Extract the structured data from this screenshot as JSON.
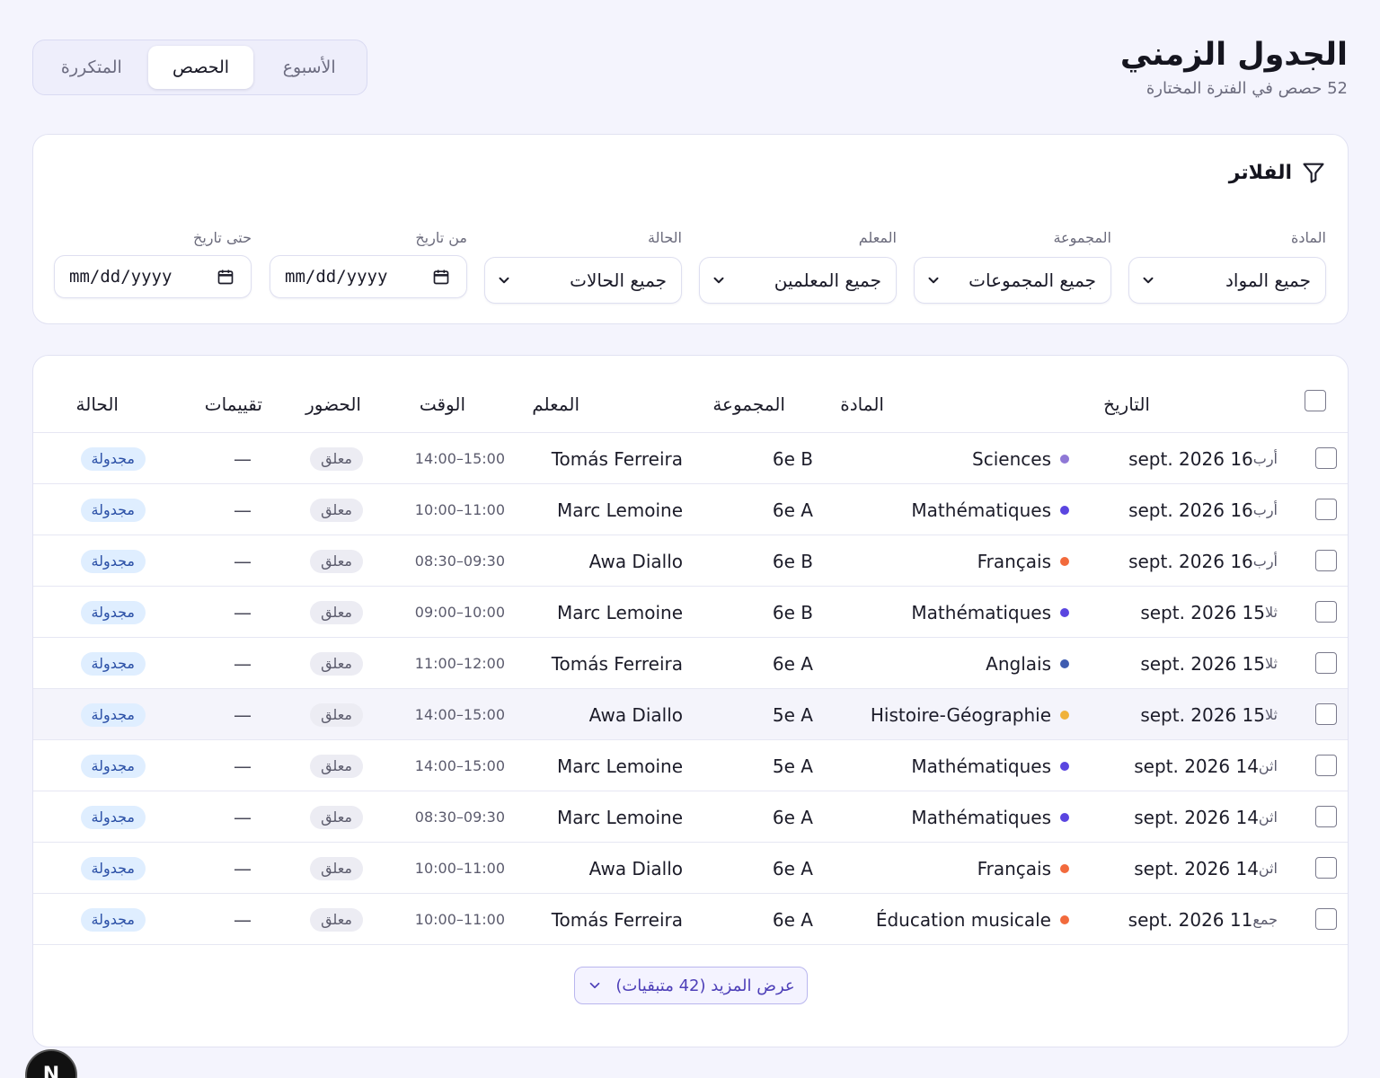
{
  "header": {
    "title": "الجدول الزمني",
    "subtitle": "52 حصص في الفترة المختارة"
  },
  "view_tabs": [
    {
      "label": "الأسبوع",
      "active": false
    },
    {
      "label": "الحصص",
      "active": true
    },
    {
      "label": "المتكررة",
      "active": false
    }
  ],
  "filters": {
    "title": "الفلاتر",
    "subject": {
      "label": "المادة",
      "value": "جميع المواد"
    },
    "group": {
      "label": "المجموعة",
      "value": "جميع المجموعات"
    },
    "teacher": {
      "label": "المعلم",
      "value": "جميع المعلمين"
    },
    "status": {
      "label": "الحالة",
      "value": "جميع الحالات"
    },
    "from_date": {
      "label": "من تاريخ",
      "placeholder": "mm/dd/yyyy"
    },
    "to_date": {
      "label": "حتى تاريخ",
      "placeholder": "mm/dd/yyyy"
    }
  },
  "table": {
    "columns": {
      "date": "التاريخ",
      "subject": "المادة",
      "group": "المجموعة",
      "teacher": "المعلم",
      "time": "الوقت",
      "attendance": "الحضور",
      "ratings": "تقييمات",
      "status": "الحالة"
    },
    "rows": [
      {
        "dow": "أرب",
        "date": "16 sept. 2026",
        "subject": "Sciences",
        "color": "#8f78d6",
        "group": "6e B",
        "teacher": "Tomás Ferreira",
        "time": "14:00–15:00",
        "attendance": "معلق",
        "ratings": "—",
        "status": "مجدولة"
      },
      {
        "dow": "أرب",
        "date": "16 sept. 2026",
        "subject": "Mathématiques",
        "color": "#5a45e0",
        "group": "6e A",
        "teacher": "Marc Lemoine",
        "time": "10:00–11:00",
        "attendance": "معلق",
        "ratings": "—",
        "status": "مجدولة"
      },
      {
        "dow": "أرب",
        "date": "16 sept. 2026",
        "subject": "Français",
        "color": "#f26a3c",
        "group": "6e B",
        "teacher": "Awa Diallo",
        "time": "08:30–09:30",
        "attendance": "معلق",
        "ratings": "—",
        "status": "مجدولة"
      },
      {
        "dow": "ثلا",
        "date": "15 sept. 2026",
        "subject": "Mathématiques",
        "color": "#5a45e0",
        "group": "6e B",
        "teacher": "Marc Lemoine",
        "time": "09:00–10:00",
        "attendance": "معلق",
        "ratings": "—",
        "status": "مجدولة"
      },
      {
        "dow": "ثلا",
        "date": "15 sept. 2026",
        "subject": "Anglais",
        "color": "#3f5cb0",
        "group": "6e A",
        "teacher": "Tomás Ferreira",
        "time": "11:00–12:00",
        "attendance": "معلق",
        "ratings": "—",
        "status": "مجدولة"
      },
      {
        "dow": "ثلا",
        "date": "15 sept. 2026",
        "subject": "Histoire-Géographie",
        "color": "#f0b23a",
        "group": "5e A",
        "teacher": "Awa Diallo",
        "time": "14:00–15:00",
        "attendance": "معلق",
        "ratings": "—",
        "status": "مجدولة"
      },
      {
        "dow": "اثن",
        "date": "14 sept. 2026",
        "subject": "Mathématiques",
        "color": "#5a45e0",
        "group": "5e A",
        "teacher": "Marc Lemoine",
        "time": "14:00–15:00",
        "attendance": "معلق",
        "ratings": "—",
        "status": "مجدولة"
      },
      {
        "dow": "اثن",
        "date": "14 sept. 2026",
        "subject": "Mathématiques",
        "color": "#5a45e0",
        "group": "6e A",
        "teacher": "Marc Lemoine",
        "time": "08:30–09:30",
        "attendance": "معلق",
        "ratings": "—",
        "status": "مجدولة"
      },
      {
        "dow": "اثن",
        "date": "14 sept. 2026",
        "subject": "Français",
        "color": "#f26a3c",
        "group": "6e A",
        "teacher": "Awa Diallo",
        "time": "10:00–11:00",
        "attendance": "معلق",
        "ratings": "—",
        "status": "مجدولة"
      },
      {
        "dow": "جمع",
        "date": "11 sept. 2026",
        "subject": "Éducation musicale",
        "color": "#f26a3c",
        "group": "6e A",
        "teacher": "Tomás Ferreira",
        "time": "10:00–11:00",
        "attendance": "معلق",
        "ratings": "—",
        "status": "مجدولة"
      }
    ]
  },
  "show_more": {
    "label": "عرض المزيد (42 متبقيات)"
  },
  "dev_badge": {
    "letter": "N"
  },
  "colors": {
    "accent": "#4d3fb8",
    "status_blue": "#2a4fa6",
    "background": "#f4f4fd"
  }
}
